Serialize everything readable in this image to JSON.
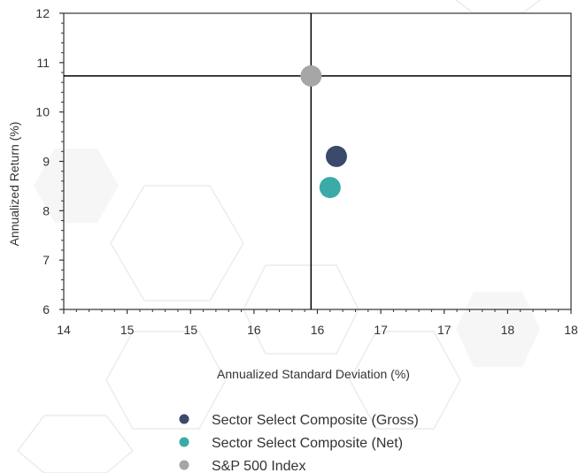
{
  "chart_data": {
    "type": "scatter",
    "title": "",
    "xlabel": "Annualized Standard Deviation (%)",
    "ylabel": "Annualized Return (%)",
    "xlim": [
      14,
      18
    ],
    "ylim": [
      6,
      12
    ],
    "x_tick_labels": [
      "14",
      "15",
      "15",
      "16",
      "16",
      "17",
      "17",
      "18",
      "18"
    ],
    "y_tick_labels": [
      "6",
      "7",
      "8",
      "9",
      "10",
      "11",
      "12"
    ],
    "reference_lines": {
      "x": 15.95,
      "y": 10.73
    },
    "grid": false,
    "legend_position": "bottom",
    "series": [
      {
        "name": "Sector Select Composite (Gross)",
        "color": "#3b4a6b",
        "points": [
          {
            "x": 16.15,
            "y": 9.1
          }
        ]
      },
      {
        "name": "Sector Select Composite (Net)",
        "color": "#3aaba6",
        "points": [
          {
            "x": 16.1,
            "y": 8.47
          }
        ]
      },
      {
        "name": "S&P 500 Index",
        "color": "#a6a6a6",
        "points": [
          {
            "x": 15.95,
            "y": 10.73
          }
        ]
      }
    ]
  }
}
